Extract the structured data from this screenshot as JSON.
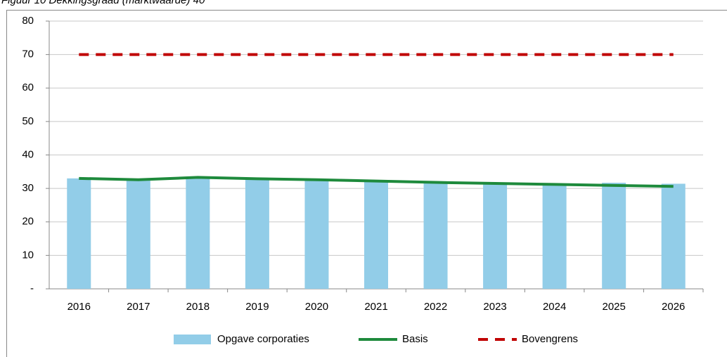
{
  "chart_data": {
    "type": "bar",
    "title": "Figuur 10 Dekkingsgraad (marktwaarde) 40",
    "categories": [
      "2016",
      "2017",
      "2018",
      "2019",
      "2020",
      "2021",
      "2022",
      "2023",
      "2024",
      "2025",
      "2026"
    ],
    "series": [
      {
        "name": "Opgave corporaties",
        "type": "bar",
        "color": "#92cde8",
        "values": [
          33,
          32.7,
          33.3,
          33,
          32.7,
          32.3,
          32,
          31.6,
          31.3,
          31.7,
          31.4
        ]
      },
      {
        "name": "Basis",
        "type": "line",
        "color": "#1e8a3c",
        "values": [
          33,
          32.6,
          33.3,
          32.9,
          32.6,
          32.2,
          31.8,
          31.5,
          31.2,
          30.9,
          30.6
        ]
      },
      {
        "name": "Bovengrens",
        "type": "dashed-line",
        "color": "#c00000",
        "values": [
          70,
          70,
          70,
          70,
          70,
          70,
          70,
          70,
          70,
          70,
          70
        ]
      }
    ],
    "ylim": [
      0,
      80
    ],
    "yticks": [
      {
        "value": 0,
        "label": "-"
      },
      10,
      20,
      30,
      40,
      50,
      60,
      70,
      80
    ],
    "grid": true,
    "legend": "bottom"
  }
}
